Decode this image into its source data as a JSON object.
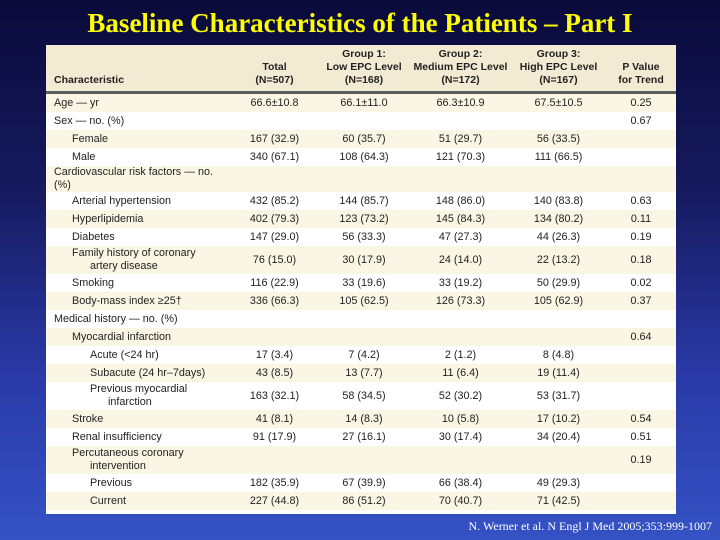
{
  "title": "Baseline Characteristics of the Patients – Part I",
  "table": {
    "headers": [
      [
        "Characteristic"
      ],
      [
        "Total",
        "(N=507)"
      ],
      [
        "Group 1:",
        "Low EPC Level",
        "(N=168)"
      ],
      [
        "Group 2:",
        "Medium EPC Level",
        "(N=172)"
      ],
      [
        "Group 3:",
        "High EPC Level",
        "(N=167)"
      ],
      [
        "P Value",
        "for Trend"
      ]
    ],
    "rows": [
      {
        "indent": 0,
        "label": [
          "Age — yr"
        ],
        "values": [
          "66.6±10.8",
          "66.1±11.0",
          "66.3±10.9",
          "67.5±10.5",
          "0.25"
        ]
      },
      {
        "indent": 0,
        "label": [
          "Sex — no. (%)"
        ],
        "values": [
          "",
          "",
          "",
          "",
          "0.67"
        ]
      },
      {
        "indent": 1,
        "label": [
          "Female"
        ],
        "values": [
          "167 (32.9)",
          "60 (35.7)",
          "51 (29.7)",
          "56 (33.5)",
          ""
        ]
      },
      {
        "indent": 1,
        "label": [
          "Male"
        ],
        "values": [
          "340 (67.1)",
          "108 (64.3)",
          "121 (70.3)",
          "111 (66.5)",
          ""
        ]
      },
      {
        "indent": 0,
        "label": [
          "Cardiovascular risk factors — no. (%)"
        ],
        "values": [
          "",
          "",
          "",
          "",
          ""
        ]
      },
      {
        "indent": 1,
        "label": [
          "Arterial hypertension"
        ],
        "values": [
          "432 (85.2)",
          "144 (85.7)",
          "148 (86.0)",
          "140 (83.8)",
          "0.63"
        ]
      },
      {
        "indent": 1,
        "label": [
          "Hyperlipidemia"
        ],
        "values": [
          "402 (79.3)",
          "123 (73.2)",
          "145 (84.3)",
          "134 (80.2)",
          "0.11"
        ]
      },
      {
        "indent": 1,
        "label": [
          "Diabetes"
        ],
        "values": [
          "147 (29.0)",
          "56 (33.3)",
          "47 (27.3)",
          "44 (26.3)",
          "0.19"
        ]
      },
      {
        "indent": 1,
        "label": [
          "Family history of coronary",
          "artery disease"
        ],
        "values": [
          "76 (15.0)",
          "30 (17.9)",
          "24 (14.0)",
          "22 (13.2)",
          "0.18"
        ]
      },
      {
        "indent": 1,
        "label": [
          "Smoking"
        ],
        "values": [
          "116 (22.9)",
          "33 (19.6)",
          "33 (19.2)",
          "50 (29.9)",
          "0.02"
        ]
      },
      {
        "indent": 1,
        "label": [
          "Body-mass index ≥25†"
        ],
        "values": [
          "336 (66.3)",
          "105 (62.5)",
          "126 (73.3)",
          "105 (62.9)",
          "0.37"
        ]
      },
      {
        "indent": 0,
        "label": [
          "Medical history — no. (%)"
        ],
        "values": [
          "",
          "",
          "",
          "",
          ""
        ]
      },
      {
        "indent": 1,
        "label": [
          "Myocardial infarction"
        ],
        "values": [
          "",
          "",
          "",
          "",
          "0.64"
        ]
      },
      {
        "indent": 2,
        "label": [
          "Acute (<24 hr)"
        ],
        "values": [
          "17 (3.4)",
          "7 (4.2)",
          "2 (1.2)",
          "8 (4.8)",
          ""
        ]
      },
      {
        "indent": 2,
        "label": [
          "Subacute (24 hr–7days)"
        ],
        "values": [
          "43 (8.5)",
          "13 (7.7)",
          "11 (6.4)",
          "19 (11.4)",
          ""
        ]
      },
      {
        "indent": 2,
        "label": [
          "Previous myocardial",
          "infarction"
        ],
        "values": [
          "163 (32.1)",
          "58 (34.5)",
          "52 (30.2)",
          "53 (31.7)",
          ""
        ]
      },
      {
        "indent": 1,
        "label": [
          "Stroke"
        ],
        "values": [
          "41 (8.1)",
          "14 (8.3)",
          "10 (5.8)",
          "17 (10.2)",
          "0.54"
        ]
      },
      {
        "indent": 1,
        "label": [
          "Renal insufficiency"
        ],
        "values": [
          "91 (17.9)",
          "27 (16.1)",
          "30 (17.4)",
          "34 (20.4)",
          "0.51"
        ]
      },
      {
        "indent": 1,
        "label": [
          "Percutaneous coronary",
          "intervention"
        ],
        "values": [
          "",
          "",
          "",
          "",
          "0.19"
        ]
      },
      {
        "indent": 2,
        "label": [
          "Previous"
        ],
        "values": [
          "182 (35.9)",
          "67 (39.9)",
          "66 (38.4)",
          "49 (29.3)",
          ""
        ]
      },
      {
        "indent": 2,
        "label": [
          "Current"
        ],
        "values": [
          "227 (44.8)",
          "86 (51.2)",
          "70 (40.7)",
          "71 (42.5)",
          ""
        ]
      }
    ]
  },
  "citation": "N. Werner et al. N Engl J Med 2005;353:999-1007",
  "colors": {
    "title": "#ffff00",
    "header_bg": "#f3ead3",
    "alt_row": "#fbf5e4",
    "rule": "#5b5b5b"
  }
}
